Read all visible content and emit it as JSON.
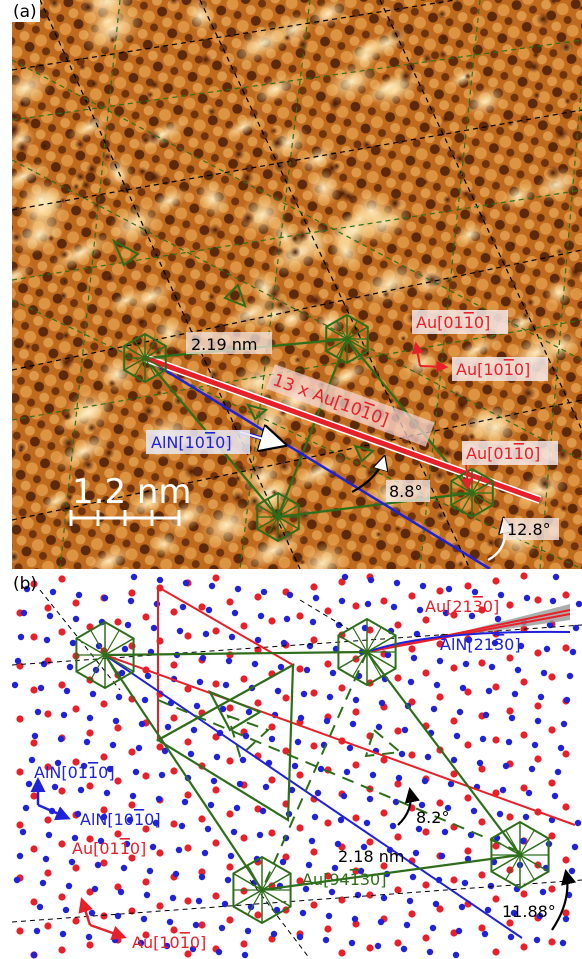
{
  "panel_a": {
    "label": "(a)",
    "scale_bar": "1.2 nm",
    "distance": "2.19 nm",
    "multiple_label": "13 x Au[10",
    "multiple_label_bar": "1",
    "multiple_label_end": "0]",
    "aln_dir": {
      "pre": "AlN[10",
      "bar": "1",
      "post": "0]"
    },
    "au_dir_a": {
      "pre": "Au[01",
      "bar": "1",
      "post": "0]"
    },
    "au_dir_b": {
      "pre": "Au[10",
      "bar": "1",
      "post": "0]"
    },
    "au_dir_c": {
      "pre": "Au[01",
      "bar": "1",
      "post": "0]"
    },
    "angle_1": "8.8°",
    "angle_2": "12.8°"
  },
  "panel_b": {
    "label": "(b)",
    "au_2130": {
      "pre": "Au[21",
      "bar": "3",
      "post": "0]"
    },
    "aln_2130": {
      "pre": "AlN[21",
      "bar": "3",
      "post": "0]"
    },
    "aln_0110": {
      "pre": "AlN[01",
      "bar": "1",
      "post": "0]"
    },
    "aln_1010": {
      "pre": "AlN[10",
      "bar": "1",
      "post": "0]"
    },
    "au_0110": {
      "pre": "Au[01",
      "bar": "1",
      "post": "0]"
    },
    "au_1010": {
      "pre": "Au[10",
      "bar": "1",
      "post": "0]"
    },
    "au_9430": {
      "pre": "Au[94",
      "bar": "1",
      "post": "30]"
    },
    "distance": "2.18 nm",
    "angle_1": "8.2°",
    "angle_2": "11.88°"
  },
  "colors": {
    "au": "#e8202a",
    "aln": "#1f22d8",
    "green": "#2e6e1a",
    "stm_base": "#c8701e"
  }
}
